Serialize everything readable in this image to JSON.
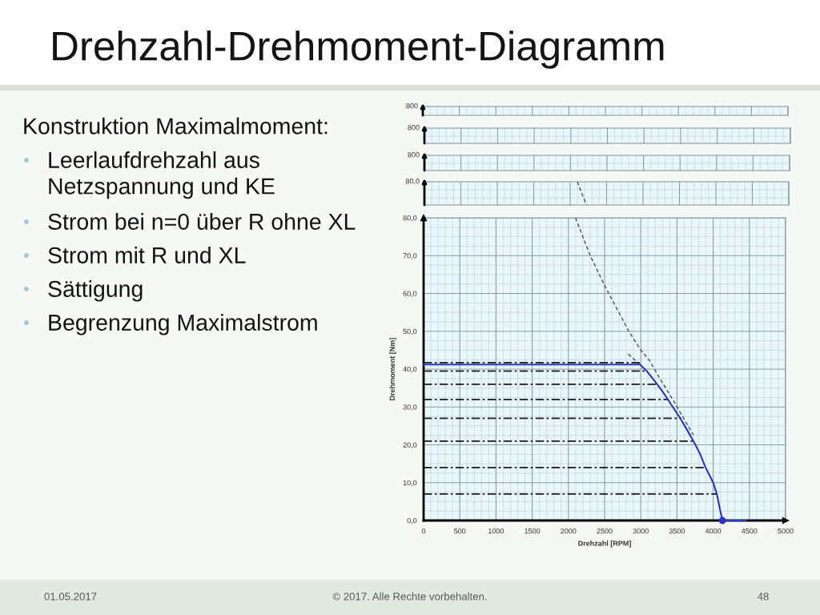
{
  "chart_data": [
    {
      "type": "other",
      "title": "Drehzahl-Drehmoment-Diagramm",
      "subtitle": "Konstruktion Maximalmoment:",
      "annotations": [
        "Leerlaufdrehzahl aus Netzspannung und KE",
        "Strom bei n=0 über R ohne XL",
        "Strom mit R und XL",
        "Sättigung",
        "Begrenzung Maximalstrom"
      ]
    },
    {
      "type": "other",
      "annotations": [
        "800",
        "800",
        "800",
        "80,0"
      ]
    },
    {
      "type": "line",
      "xlabel": "Drehzahl [RPM]",
      "ylabel": "Drehmoment [Nm]",
      "xlim": [
        0,
        5000
      ],
      "ylim": [
        0,
        80
      ],
      "xticks": [
        0,
        500,
        1000,
        1500,
        2000,
        2500,
        3000,
        3500,
        4000,
        4500,
        5000
      ],
      "yticks": [
        {
          "value": 0,
          "label": "0,0"
        },
        {
          "value": 10,
          "label": "10,0"
        },
        {
          "value": 20,
          "label": "20,0"
        },
        {
          "value": 30,
          "label": "30,0"
        },
        {
          "value": 40,
          "label": "40,0"
        },
        {
          "value": 50,
          "label": "50,0"
        },
        {
          "value": 60,
          "label": "60,0"
        },
        {
          "value": 70,
          "label": "70,0"
        },
        {
          "value": 80,
          "label": "80,0"
        }
      ],
      "grid": true,
      "series": [
        {
          "color": "#4f5f70",
          "line_style": "dashed",
          "x": [
            2098,
            2297,
            2500,
            2832,
            2998,
            3120,
            3267,
            3451,
            3598,
            3727
          ],
          "values": [
            80,
            70.2,
            62.1,
            50.1,
            45.1,
            42.3,
            37.4,
            31.7,
            26.8,
            22.6
          ]
        },
        {
          "color": "#4f5f70",
          "line_style": "dashed",
          "x": [
            2826,
            2991
          ],
          "values": [
            44.0,
            41.2
          ]
        },
        {
          "color": "#1a1a1a",
          "line_style": "dashdot",
          "x": [
            0,
            2990
          ],
          "values": [
            41.7,
            41.7
          ]
        },
        {
          "color": "#1a1a1a",
          "line_style": "dashdot",
          "x": [
            0,
            3065
          ],
          "values": [
            39.5,
            39.5
          ]
        },
        {
          "color": "#1a1a1a",
          "line_style": "dashdot",
          "x": [
            0,
            3231
          ],
          "values": [
            36.0,
            36.0
          ]
        },
        {
          "color": "#1a1a1a",
          "line_style": "dashdot",
          "x": [
            0,
            3377
          ],
          "values": [
            32.0,
            32.0
          ]
        },
        {
          "color": "#1a1a1a",
          "line_style": "dashdot",
          "x": [
            0,
            3561
          ],
          "values": [
            27.0,
            27.0
          ]
        },
        {
          "color": "#1a1a1a",
          "line_style": "dashdot",
          "x": [
            0,
            3727
          ],
          "values": [
            21.0,
            21.0
          ]
        },
        {
          "color": "#1a1a1a",
          "line_style": "dashdot",
          "x": [
            0,
            3893
          ],
          "values": [
            14.0,
            14.0
          ]
        },
        {
          "color": "#1a1a1a",
          "line_style": "dashdot",
          "x": [
            0,
            4051
          ],
          "values": [
            7.0,
            7.0
          ]
        },
        {
          "color": "#2a36c4",
          "line_style": "solid",
          "x": [
            0,
            2990,
            3083,
            3231,
            3304,
            3377,
            3543,
            3635,
            3727,
            3819,
            3893,
            3959,
            4003,
            4051,
            4088,
            4128,
            4450
          ],
          "values": [
            41.2,
            41.2,
            39.5,
            35.9,
            34.0,
            31.9,
            27.1,
            24.1,
            21.0,
            17.6,
            14.1,
            11.6,
            9.9,
            7.0,
            3.5,
            0,
            0
          ]
        },
        {
          "type": "scatter",
          "color": "#2a36c4",
          "marker": "circle",
          "x": [
            4128
          ],
          "values": [
            0
          ]
        }
      ],
      "annotations": [
        "01.05.2017",
        "© 2017. Alle Rechte vorbehalten.",
        "48"
      ]
    }
  ]
}
